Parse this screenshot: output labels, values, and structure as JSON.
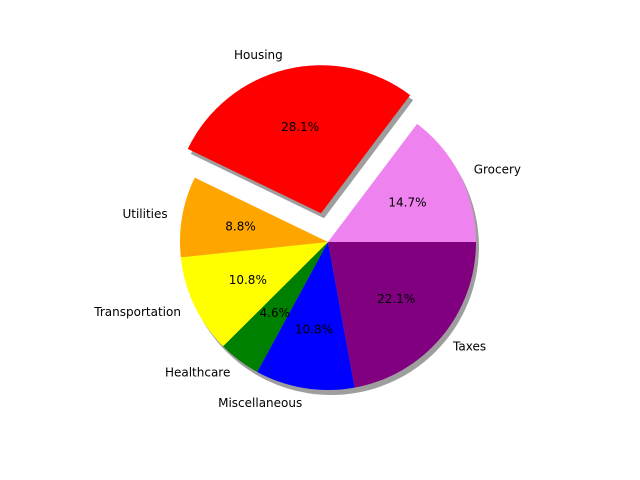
{
  "chart_data": {
    "type": "pie",
    "categories": [
      "Grocery",
      "Housing",
      "Utilities",
      "Transportation",
      "Healthcare",
      "Miscellaneous",
      "Taxes"
    ],
    "values": [
      14.7,
      28.1,
      8.8,
      10.8,
      4.6,
      10.8,
      22.1
    ],
    "percent_labels": [
      "14.7%",
      "28.1%",
      "8.8%",
      "10.8%",
      "4.6%",
      "10.8%",
      "22.1%"
    ],
    "colors": [
      "#ee82ee",
      "#ff0000",
      "#ffa500",
      "#ffff00",
      "#008000",
      "#0000ff",
      "#800080"
    ],
    "explode": [
      0,
      0.2,
      0,
      0,
      0,
      0,
      0
    ],
    "start_angle_deg": 0,
    "shadow": true
  }
}
